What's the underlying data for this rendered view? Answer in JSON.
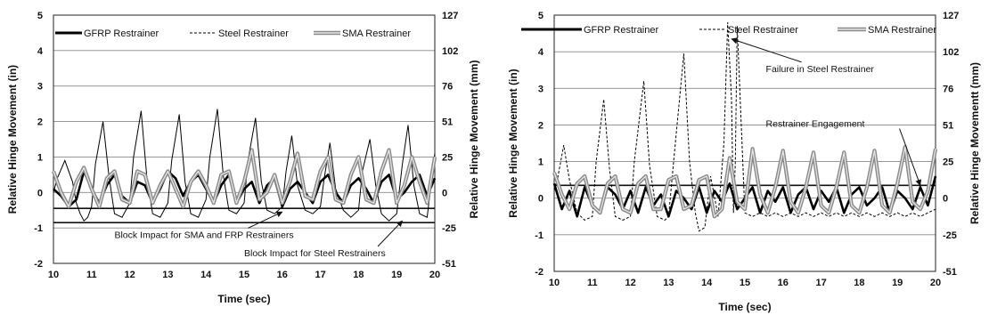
{
  "chart_data": [
    {
      "type": "line",
      "xlabel": "Time (sec)",
      "ylabel": "Relative Hinge Movement (in)",
      "y2label": "Relative Hinge Movement (mm)",
      "xlim": [
        10,
        20
      ],
      "ylim": [
        -2,
        5
      ],
      "x_ticks": [
        "10",
        "11",
        "12",
        "13",
        "14",
        "15",
        "16",
        "17",
        "18",
        "19",
        "20"
      ],
      "y_ticks": [
        "-2",
        "-1",
        "0",
        "1",
        "2",
        "3",
        "4",
        "5"
      ],
      "y2_ticks": [
        "-51",
        "-25",
        "0",
        "25",
        "51",
        "76",
        "102",
        "127"
      ],
      "grid": "horizontal",
      "legend_position": "top",
      "reference_lines": [
        -0.45,
        -0.85
      ],
      "series": [
        {
          "name": "GFRP Restrainer",
          "style": "thick",
          "color": "#000000",
          "x": [
            10,
            10.2,
            10.4,
            10.6,
            10.8,
            11,
            11.2,
            11.4,
            11.6,
            11.8,
            12,
            12.2,
            12.4,
            12.6,
            12.8,
            13,
            13.2,
            13.4,
            13.6,
            13.8,
            14,
            14.2,
            14.4,
            14.6,
            14.8,
            15,
            15.2,
            15.4,
            15.6,
            15.8,
            16,
            16.2,
            16.4,
            16.6,
            16.8,
            17,
            17.2,
            17.4,
            17.6,
            17.8,
            18,
            18.2,
            18.4,
            18.6,
            18.8,
            19,
            19.2,
            19.4,
            19.6,
            19.8,
            20
          ],
          "values": [
            0.1,
            -0.1,
            -0.4,
            -0.2,
            0.6,
            0.1,
            -0.3,
            0.2,
            0.5,
            -0.1,
            -0.3,
            0.3,
            0.2,
            -0.3,
            0.1,
            0.6,
            0.4,
            -0.1,
            0.3,
            0.5,
            0.1,
            -0.3,
            0.2,
            0.5,
            -0.3,
            0.1,
            0.3,
            -0.3,
            0.2,
            0.4,
            -0.4,
            0.1,
            0.3,
            0.0,
            -0.3,
            0.3,
            0.5,
            0.0,
            -0.3,
            0.2,
            0.4,
            0.1,
            -0.3,
            0.3,
            0.5,
            -0.2,
            0.0,
            0.3,
            0.5,
            -0.1,
            0.4
          ]
        },
        {
          "name": "Steel Restrainer",
          "style": "thin",
          "color": "#000000",
          "x": [
            10,
            10.1,
            10.3,
            10.5,
            10.6,
            10.7,
            10.8,
            10.9,
            11.0,
            11.1,
            11.3,
            11.45,
            11.6,
            11.8,
            12.0,
            12.1,
            12.3,
            12.45,
            12.6,
            12.8,
            13.0,
            13.1,
            13.3,
            13.45,
            13.6,
            13.8,
            14.0,
            14.1,
            14.3,
            14.45,
            14.6,
            14.8,
            15.0,
            15.1,
            15.3,
            15.45,
            15.6,
            15.8,
            16.0,
            16.1,
            16.25,
            16.4,
            16.6,
            16.8,
            17.0,
            17.1,
            17.25,
            17.4,
            17.6,
            17.8,
            18.0,
            18.1,
            18.3,
            18.45,
            18.6,
            18.8,
            19.0,
            19.15,
            19.3,
            19.45,
            19.6,
            19.8,
            20.0
          ],
          "values": [
            0.0,
            0.4,
            0.9,
            0.3,
            -0.3,
            -0.6,
            -0.8,
            -0.7,
            -0.4,
            0.8,
            2.0,
            0.5,
            -0.6,
            -0.7,
            -0.3,
            1.0,
            2.3,
            0.4,
            -0.6,
            -0.7,
            -0.3,
            0.9,
            2.2,
            0.3,
            -0.6,
            -0.7,
            -0.2,
            1.0,
            2.35,
            0.5,
            -0.5,
            -0.6,
            -0.3,
            0.9,
            2.1,
            0.3,
            -0.5,
            -0.6,
            -0.4,
            0.6,
            1.6,
            0.2,
            -0.5,
            -0.6,
            -0.4,
            0.4,
            1.4,
            0.1,
            -0.5,
            -0.7,
            -0.5,
            0.6,
            1.5,
            0.2,
            -0.6,
            -0.8,
            -0.6,
            0.8,
            1.9,
            0.2,
            -0.6,
            -0.7,
            1.1
          ]
        },
        {
          "name": "SMA Restrainer",
          "style": "double",
          "color": "#7a7a7a",
          "x": [
            10,
            10.2,
            10.4,
            10.6,
            10.8,
            11,
            11.2,
            11.4,
            11.6,
            11.8,
            12,
            12.2,
            12.4,
            12.6,
            12.8,
            13,
            13.2,
            13.4,
            13.6,
            13.8,
            14,
            14.2,
            14.4,
            14.6,
            14.8,
            15,
            15.2,
            15.4,
            15.6,
            15.8,
            16,
            16.2,
            16.4,
            16.6,
            16.8,
            17,
            17.2,
            17.4,
            17.6,
            17.8,
            18,
            18.2,
            18.4,
            18.6,
            18.8,
            19,
            19.2,
            19.4,
            19.6,
            19.8,
            20
          ],
          "values": [
            0.6,
            0.0,
            -0.4,
            0.3,
            0.7,
            0.1,
            -0.4,
            0.4,
            0.6,
            -0.2,
            -0.3,
            0.6,
            0.5,
            -0.3,
            0.2,
            0.6,
            0.1,
            -0.4,
            0.3,
            0.6,
            0.2,
            -0.3,
            0.5,
            0.6,
            -0.3,
            0.3,
            1.2,
            -0.2,
            0.0,
            0.5,
            -0.3,
            0.3,
            1.1,
            -0.1,
            -0.2,
            0.6,
            1.0,
            -0.2,
            -0.3,
            0.5,
            1.0,
            -0.2,
            -0.3,
            0.6,
            1.2,
            -0.3,
            0.2,
            1.0,
            0.3,
            -0.3,
            1.0
          ]
        }
      ],
      "annotations": [
        {
          "text": "Block Impact for SMA and FRP Restrainers",
          "target_x": 16.0,
          "target_y": -0.55,
          "text_x": 11.6,
          "text_y": -1.28
        },
        {
          "text": "Block Impact for Steel Restrainers",
          "target_x": 19.15,
          "target_y": -0.8,
          "text_x": 15.0,
          "text_y": -1.8
        }
      ]
    },
    {
      "type": "line",
      "xlabel": "Time (sec)",
      "ylabel": "Relative Hinge Movement (in)",
      "y2label": "Relative Hinge Movementt (mm)",
      "xlim": [
        10,
        20
      ],
      "ylim": [
        -2,
        5
      ],
      "x_ticks": [
        "10",
        "11",
        "12",
        "13",
        "14",
        "15",
        "16",
        "17",
        "18",
        "19",
        "20"
      ],
      "y_ticks": [
        "-2",
        "-1",
        "0",
        "1",
        "2",
        "3",
        "4",
        "5"
      ],
      "y2_ticks": [
        "-51",
        "-25",
        "0",
        "25",
        "51",
        "76",
        "102",
        "127"
      ],
      "grid": "horizontal",
      "legend_position": "top",
      "reference_lines": [
        0.35
      ],
      "series": [
        {
          "name": "GFRP Restrainer",
          "style": "thick",
          "color": "#000000",
          "x": [
            10,
            10.2,
            10.4,
            10.6,
            10.8,
            11,
            11.2,
            11.4,
            11.6,
            11.8,
            12,
            12.2,
            12.4,
            12.6,
            12.8,
            13,
            13.2,
            13.4,
            13.6,
            13.8,
            14,
            14.2,
            14.4,
            14.6,
            14.8,
            15,
            15.2,
            15.4,
            15.6,
            15.8,
            16,
            16.2,
            16.4,
            16.6,
            16.8,
            17,
            17.2,
            17.4,
            17.6,
            17.8,
            18,
            18.2,
            18.4,
            18.6,
            18.8,
            19,
            19.2,
            19.4,
            19.6,
            19.8,
            20
          ],
          "values": [
            0.4,
            -0.3,
            0.2,
            -0.5,
            0.3,
            -0.2,
            -0.4,
            0.3,
            0.1,
            -0.3,
            0.2,
            -0.4,
            0.3,
            -0.2,
            0.1,
            -0.5,
            0.2,
            0.0,
            -0.3,
            0.3,
            -0.4,
            0.2,
            -0.1,
            0.4,
            -0.3,
            0.0,
            0.3,
            -0.4,
            0.2,
            -0.1,
            0.3,
            -0.4,
            0.1,
            0.3,
            -0.3,
            0.2,
            -0.1,
            0.3,
            -0.4,
            0.1,
            0.3,
            -0.2,
            0.0,
            0.3,
            -0.4,
            0.2,
            0.0,
            -0.3,
            0.3,
            -0.2,
            0.6
          ]
        },
        {
          "name": "Steel Restrainer",
          "style": "dash",
          "color": "#000000",
          "x": [
            10,
            10.1,
            10.25,
            10.4,
            10.6,
            10.8,
            11.0,
            11.1,
            11.3,
            11.45,
            11.6,
            11.8,
            12.0,
            12.1,
            12.35,
            12.5,
            12.7,
            12.9,
            13.0,
            13.15,
            13.4,
            13.55,
            13.7,
            13.8,
            13.95,
            14.1,
            14.3,
            14.45,
            14.55,
            14.65,
            14.7,
            14.75,
            14.8,
            15.0,
            15.2,
            15.4,
            15.6,
            15.8,
            16.0,
            16.2,
            16.4,
            16.6,
            16.8,
            17.0,
            17.2,
            17.4,
            17.6,
            17.8,
            18.0,
            18.2,
            18.4,
            18.6,
            18.8,
            19.0,
            19.2,
            19.4,
            19.6,
            19.8,
            20.0
          ],
          "values": [
            0.2,
            0.6,
            1.45,
            0.5,
            -0.4,
            -0.6,
            -0.5,
            1.0,
            2.7,
            0.8,
            -0.5,
            -0.6,
            -0.5,
            1.0,
            3.2,
            0.9,
            -0.5,
            -0.6,
            -0.5,
            1.2,
            3.95,
            1.0,
            -0.4,
            -0.9,
            -0.8,
            0.6,
            -0.5,
            1.5,
            4.8,
            2.7,
            -0.4,
            1.0,
            4.7,
            -0.4,
            -0.5,
            -0.4,
            -0.5,
            -0.4,
            -0.5,
            -0.4,
            -0.5,
            -0.4,
            -0.5,
            -0.4,
            -0.5,
            -0.4,
            -0.5,
            -0.4,
            -0.5,
            -0.4,
            -0.5,
            -0.4,
            -0.5,
            -0.4,
            -0.5,
            -0.4,
            -0.5,
            -0.4,
            -0.3
          ]
        },
        {
          "name": "SMA Restrainer",
          "style": "double",
          "color": "#7a7a7a",
          "x": [
            10,
            10.2,
            10.4,
            10.6,
            10.8,
            11,
            11.2,
            11.4,
            11.6,
            11.8,
            12,
            12.2,
            12.4,
            12.6,
            12.8,
            13,
            13.2,
            13.4,
            13.6,
            13.8,
            14,
            14.2,
            14.4,
            14.6,
            14.8,
            15,
            15.2,
            15.4,
            15.6,
            15.8,
            16,
            16.2,
            16.4,
            16.6,
            16.8,
            17,
            17.2,
            17.4,
            17.6,
            17.8,
            18,
            18.2,
            18.4,
            18.6,
            18.8,
            19,
            19.2,
            19.4,
            19.6,
            19.8,
            20
          ],
          "values": [
            0.7,
            0.1,
            -0.3,
            0.4,
            0.6,
            -0.2,
            -0.4,
            0.4,
            0.6,
            -0.3,
            -0.4,
            0.4,
            0.6,
            -0.3,
            -0.3,
            0.5,
            0.6,
            -0.3,
            -0.2,
            0.5,
            0.6,
            -0.5,
            -0.3,
            1.1,
            -0.1,
            -0.3,
            1.35,
            0.1,
            -0.4,
            0.3,
            1.3,
            -0.1,
            -0.4,
            0.3,
            1.25,
            -0.2,
            -0.4,
            0.3,
            1.25,
            -0.2,
            -0.4,
            0.3,
            1.3,
            -0.2,
            -0.4,
            0.4,
            1.4,
            -0.1,
            -0.3,
            0.2,
            1.35
          ]
        }
      ],
      "annotations": [
        {
          "text": "Failure in Steel Restrainer",
          "target_x": 14.65,
          "target_y": 4.35,
          "text_x": 15.55,
          "text_y": 3.45
        },
        {
          "text": "Restrainer Engagement",
          "target_x": 19.6,
          "target_y": 0.35,
          "text_x": 15.55,
          "text_y": 1.95
        }
      ]
    }
  ]
}
